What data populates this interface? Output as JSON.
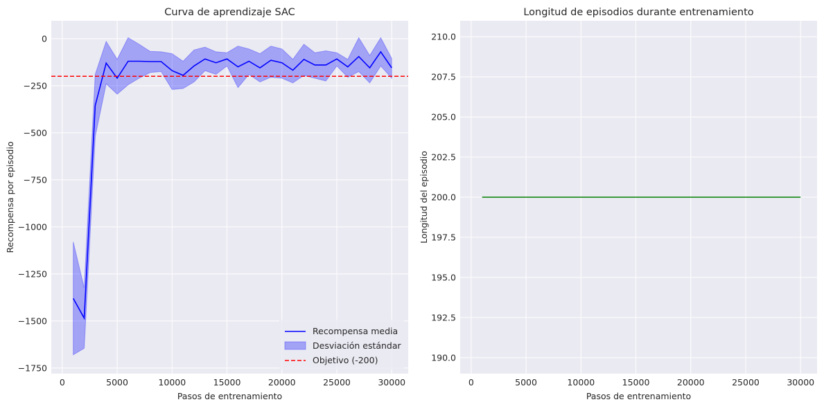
{
  "chart_data": [
    {
      "type": "line",
      "title": "Curva de aprendizaje SAC",
      "xlabel": "Pasos de entrenamiento",
      "ylabel": "Recompensa por episodio",
      "xlim": [
        -1000,
        31500
      ],
      "ylim": [
        -1780,
        95
      ],
      "xticks": [
        0,
        5000,
        10000,
        15000,
        20000,
        25000,
        30000
      ],
      "yticks": [
        0,
        -250,
        -500,
        -750,
        -1000,
        -1250,
        -1500,
        -1750
      ],
      "grid": true,
      "legend_position": "lower-right",
      "colors": {
        "mean": "#0000ff",
        "band": "#8888ff",
        "target": "#ff0000"
      },
      "series": [
        {
          "name": "Recompensa media",
          "x": [
            1000,
            2000,
            3000,
            4000,
            5000,
            6000,
            7000,
            8000,
            9000,
            10000,
            11000,
            12000,
            13000,
            14000,
            15000,
            16000,
            17000,
            18000,
            19000,
            20000,
            21000,
            22000,
            23000,
            24000,
            25000,
            26000,
            27000,
            28000,
            29000,
            30000
          ],
          "y": [
            -1380,
            -1485,
            -355,
            -130,
            -210,
            -120,
            -120,
            -122,
            -122,
            -170,
            -195,
            -145,
            -108,
            -128,
            -108,
            -150,
            -120,
            -155,
            -115,
            -128,
            -168,
            -110,
            -140,
            -140,
            -108,
            -150,
            -95,
            -155,
            -70,
            -155
          ]
        },
        {
          "name": "Desviación estándar",
          "x": [
            1000,
            2000,
            3000,
            4000,
            5000,
            6000,
            7000,
            8000,
            9000,
            10000,
            11000,
            12000,
            13000,
            14000,
            15000,
            16000,
            17000,
            18000,
            19000,
            20000,
            21000,
            22000,
            23000,
            24000,
            25000,
            26000,
            27000,
            28000,
            29000,
            30000
          ],
          "lower": [
            -1680,
            -1645,
            -520,
            -240,
            -295,
            -245,
            -210,
            -180,
            -175,
            -270,
            -265,
            -230,
            -170,
            -190,
            -145,
            -260,
            -190,
            -230,
            -205,
            -210,
            -235,
            -195,
            -210,
            -225,
            -145,
            -205,
            -175,
            -235,
            -145,
            -210
          ],
          "upper": [
            -1080,
            -1325,
            -190,
            -15,
            -110,
            5,
            -30,
            -68,
            -70,
            -80,
            -120,
            -60,
            -45,
            -70,
            -75,
            -40,
            -55,
            -80,
            -40,
            -55,
            -110,
            -30,
            -75,
            -65,
            -75,
            -110,
            5,
            -90,
            5,
            -105
          ]
        },
        {
          "name": "Objetivo (-200)",
          "y": -200
        }
      ]
    },
    {
      "type": "line",
      "title": "Longitud de episodios durante entrenamiento",
      "xlabel": "Pasos de entrenamiento",
      "ylabel": "Longitud del episodio",
      "xlim": [
        -1000,
        31500
      ],
      "ylim": [
        189.0,
        211.0
      ],
      "xticks": [
        0,
        5000,
        10000,
        15000,
        20000,
        25000,
        30000
      ],
      "yticks": [
        190.0,
        192.5,
        195.0,
        197.5,
        200.0,
        202.5,
        205.0,
        207.5,
        210.0
      ],
      "ytick_labels": [
        "190.0",
        "192.5",
        "195.0",
        "197.5",
        "200.0",
        "202.5",
        "205.0",
        "207.5",
        "210.0"
      ],
      "grid": true,
      "colors": {
        "line": "#008000"
      },
      "series": [
        {
          "x": [
            1000,
            30000
          ],
          "y": [
            200,
            200
          ]
        }
      ]
    }
  ]
}
